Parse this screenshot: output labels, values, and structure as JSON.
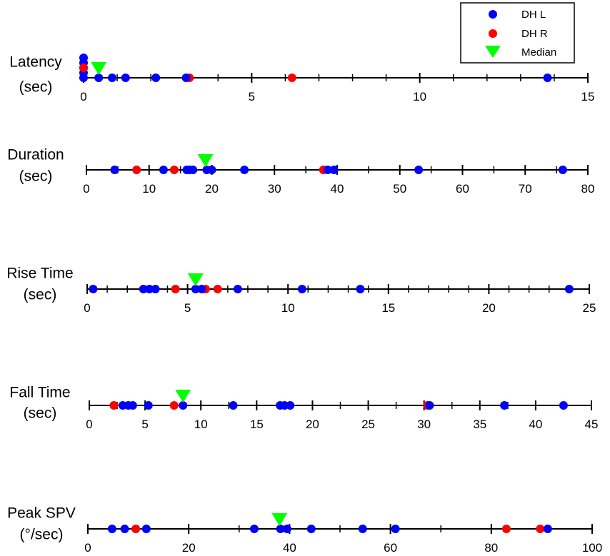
{
  "chart_data": {
    "type": "scatter",
    "colors": {
      "left": "#0000ff",
      "right": "#ff0000",
      "median": "#00ff00",
      "axis": "#000000"
    },
    "legend": {
      "position": "top-right",
      "entries": [
        {
          "key": "left",
          "label": "DH L",
          "marker": "circle"
        },
        {
          "key": "right",
          "label": "DH R",
          "marker": "circle"
        },
        {
          "key": "median",
          "label": "Median",
          "marker": "triangle-down"
        }
      ]
    },
    "rows": [
      {
        "id": "latency",
        "label_lines": [
          "Latency",
          "(sec)"
        ],
        "range": [
          0,
          15
        ],
        "ticks": [
          0,
          5,
          10,
          15
        ],
        "tick_labels": [
          "0",
          "5",
          "10",
          "15"
        ],
        "minor_step": 1,
        "median": 0.45,
        "left": [
          0.0,
          0.0,
          0.0,
          0.0,
          0.0,
          0.45,
          0.85,
          1.25,
          2.15,
          3.05,
          13.8
        ],
        "left_stacked": [
          0,
          1,
          2,
          3,
          4,
          0,
          0,
          0,
          0,
          0,
          0
        ],
        "right": [
          0.0,
          3.15,
          6.2
        ],
        "right_stacked": [
          2,
          0,
          0
        ]
      },
      {
        "id": "duration",
        "label_lines": [
          "Duration",
          "(sec)"
        ],
        "range": [
          0,
          80
        ],
        "ticks": [
          0,
          10,
          20,
          30,
          40,
          50,
          60,
          70,
          80
        ],
        "tick_labels": [
          "0",
          "10",
          "20",
          "30",
          "40",
          "50",
          "60",
          "70",
          "80"
        ],
        "minor_step": 5,
        "median": 19,
        "left": [
          4.5,
          12.3,
          16.0,
          16.5,
          17.0,
          19.2,
          20.0,
          25.2,
          38.5,
          39.5,
          53.0,
          76.0
        ],
        "right": [
          8.0,
          14.0,
          37.8
        ]
      },
      {
        "id": "rise",
        "label_lines": [
          "Rise Time",
          "(sec)"
        ],
        "range": [
          0,
          25
        ],
        "ticks": [
          0,
          5,
          10,
          15,
          20,
          25
        ],
        "tick_labels": [
          "0",
          "5",
          "10",
          "15",
          "20",
          "25"
        ],
        "minor_step": 1,
        "median": 5.4,
        "left": [
          0.3,
          2.8,
          3.1,
          3.4,
          5.4,
          5.7,
          7.5,
          10.7,
          13.6,
          24.0
        ],
        "right": [
          4.4,
          5.9,
          6.5
        ]
      },
      {
        "id": "fall",
        "label_lines": [
          "Fall Time",
          "(sec)"
        ],
        "range": [
          0,
          45
        ],
        "ticks": [
          0,
          5,
          10,
          15,
          20,
          25,
          30,
          35,
          40,
          45
        ],
        "tick_labels": [
          "0",
          "5",
          "10",
          "15",
          "20",
          "25",
          "30",
          "35",
          "40",
          "45"
        ],
        "minor_step": 2.5,
        "median": 8.4,
        "left": [
          3.0,
          3.5,
          3.9,
          5.3,
          8.4,
          12.9,
          17.1,
          17.5,
          18.0,
          30.5,
          37.2,
          42.5
        ],
        "right": [
          2.2,
          7.6,
          30.3
        ]
      },
      {
        "id": "peak",
        "label_lines": [
          "Peak SPV",
          "(°/sec)"
        ],
        "range": [
          0,
          100
        ],
        "ticks": [
          0,
          20,
          40,
          60,
          80,
          100
        ],
        "tick_labels": [
          "0",
          "20",
          "40",
          "60",
          "80",
          "100"
        ],
        "minor_step": 10,
        "median": 38,
        "left": [
          4.8,
          7.3,
          11.6,
          33.0,
          38.2,
          39.5,
          44.3,
          54.5,
          61.0,
          91.2
        ],
        "right": [
          9.5,
          83.0,
          89.7
        ]
      }
    ]
  }
}
